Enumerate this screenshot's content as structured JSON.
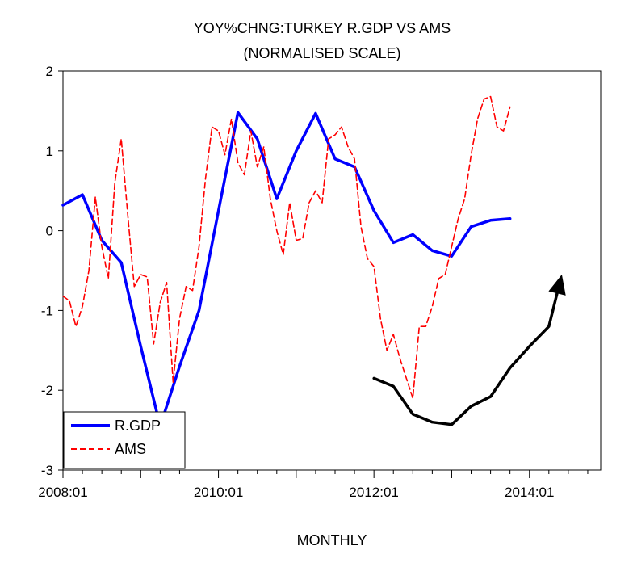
{
  "chart_data": {
    "type": "line",
    "title": "YOY%CHNG:TURKEY R.GDP VS AMS",
    "subtitle": "(NORMALISED SCALE)",
    "xlabel": "MONTHLY",
    "ylabel": "",
    "ylim": [
      -3,
      2
    ],
    "xlim": [
      "2008-01",
      "2014-12"
    ],
    "y_ticks": [
      "2",
      "1",
      "0",
      "-1",
      "-2",
      "-3"
    ],
    "x_tick_labels": [
      "2008:01",
      "2010:01",
      "2012:01",
      "2014:01"
    ],
    "grid": false,
    "legend_position": "bottom-left",
    "series": [
      {
        "name": "R.GDP",
        "color": "#0000ff",
        "style": "solid",
        "points": [
          [
            "2008-01",
            0.32
          ],
          [
            "2008-04",
            0.45
          ],
          [
            "2008-07",
            -0.12
          ],
          [
            "2008-10",
            -0.4
          ],
          [
            "2009-01",
            -1.45
          ],
          [
            "2009-04",
            -2.45
          ],
          [
            "2009-07",
            -1.7
          ],
          [
            "2009-10",
            -1.0
          ],
          [
            "2010-01",
            0.25
          ],
          [
            "2010-04",
            1.48
          ],
          [
            "2010-07",
            1.15
          ],
          [
            "2010-10",
            0.4
          ],
          [
            "2011-01",
            1.0
          ],
          [
            "2011-04",
            1.47
          ],
          [
            "2011-07",
            0.9
          ],
          [
            "2011-10",
            0.8
          ],
          [
            "2012-01",
            0.25
          ],
          [
            "2012-04",
            -0.15
          ],
          [
            "2012-07",
            -0.05
          ],
          [
            "2012-10",
            -0.25
          ],
          [
            "2013-01",
            -0.32
          ],
          [
            "2013-04",
            0.05
          ],
          [
            "2013-07",
            0.13
          ],
          [
            "2013-10",
            0.15
          ]
        ]
      },
      {
        "name": "AMS",
        "color": "#ff0000",
        "style": "dashed",
        "points": [
          [
            "2008-01",
            -0.82
          ],
          [
            "2008-02",
            -0.88
          ],
          [
            "2008-03",
            -1.2
          ],
          [
            "2008-04",
            -0.95
          ],
          [
            "2008-05",
            -0.5
          ],
          [
            "2008-06",
            0.42
          ],
          [
            "2008-07",
            -0.2
          ],
          [
            "2008-08",
            -0.6
          ],
          [
            "2008-09",
            0.6
          ],
          [
            "2008-10",
            1.15
          ],
          [
            "2008-11",
            0.2
          ],
          [
            "2008-12",
            -0.7
          ],
          [
            "2009-01",
            -0.55
          ],
          [
            "2009-02",
            -0.58
          ],
          [
            "2009-03",
            -1.42
          ],
          [
            "2009-04",
            -0.9
          ],
          [
            "2009-05",
            -0.65
          ],
          [
            "2009-06",
            -1.9
          ],
          [
            "2009-07",
            -1.1
          ],
          [
            "2009-08",
            -0.7
          ],
          [
            "2009-09",
            -0.75
          ],
          [
            "2009-10",
            -0.2
          ],
          [
            "2009-11",
            0.65
          ],
          [
            "2009-12",
            1.3
          ],
          [
            "2010-01",
            1.25
          ],
          [
            "2010-02",
            0.95
          ],
          [
            "2010-03",
            1.4
          ],
          [
            "2010-04",
            0.85
          ],
          [
            "2010-05",
            0.7
          ],
          [
            "2010-06",
            1.25
          ],
          [
            "2010-07",
            0.8
          ],
          [
            "2010-08",
            1.05
          ],
          [
            "2010-09",
            0.4
          ],
          [
            "2010-10",
            0.0
          ],
          [
            "2010-11",
            -0.3
          ],
          [
            "2010-12",
            0.35
          ],
          [
            "2011-01",
            -0.12
          ],
          [
            "2011-02",
            -0.1
          ],
          [
            "2011-03",
            0.35
          ],
          [
            "2011-04",
            0.5
          ],
          [
            "2011-05",
            0.35
          ],
          [
            "2011-06",
            1.15
          ],
          [
            "2011-07",
            1.2
          ],
          [
            "2011-08",
            1.3
          ],
          [
            "2011-09",
            1.05
          ],
          [
            "2011-10",
            0.9
          ],
          [
            "2011-11",
            0.05
          ],
          [
            "2011-12",
            -0.35
          ],
          [
            "2012-01",
            -0.45
          ],
          [
            "2012-02",
            -1.1
          ],
          [
            "2012-03",
            -1.5
          ],
          [
            "2012-04",
            -1.3
          ],
          [
            "2012-05",
            -1.6
          ],
          [
            "2012-06",
            -1.85
          ],
          [
            "2012-07",
            -2.1
          ],
          [
            "2012-08",
            -1.2
          ],
          [
            "2012-09",
            -1.2
          ],
          [
            "2012-10",
            -0.95
          ],
          [
            "2012-11",
            -0.6
          ],
          [
            "2012-12",
            -0.55
          ],
          [
            "2013-01",
            -0.2
          ],
          [
            "2013-02",
            0.15
          ],
          [
            "2013-03",
            0.4
          ],
          [
            "2013-04",
            0.95
          ],
          [
            "2013-05",
            1.4
          ],
          [
            "2013-06",
            1.65
          ],
          [
            "2013-07",
            1.68
          ],
          [
            "2013-08",
            1.3
          ],
          [
            "2013-09",
            1.25
          ],
          [
            "2013-10",
            1.55
          ]
        ]
      }
    ],
    "annotations": [
      {
        "type": "arrow",
        "color": "#000000",
        "points": [
          [
            "2012-01",
            -1.85
          ],
          [
            "2012-04",
            -1.95
          ],
          [
            "2012-07",
            -2.3
          ],
          [
            "2012-10",
            -2.4
          ],
          [
            "2013-01",
            -2.43
          ],
          [
            "2013-04",
            -2.2
          ],
          [
            "2013-07",
            -2.08
          ],
          [
            "2013-10",
            -1.72
          ],
          [
            "2014-01",
            -1.45
          ],
          [
            "2014-04",
            -1.2
          ],
          [
            "2014-06",
            -0.55
          ]
        ]
      }
    ]
  }
}
